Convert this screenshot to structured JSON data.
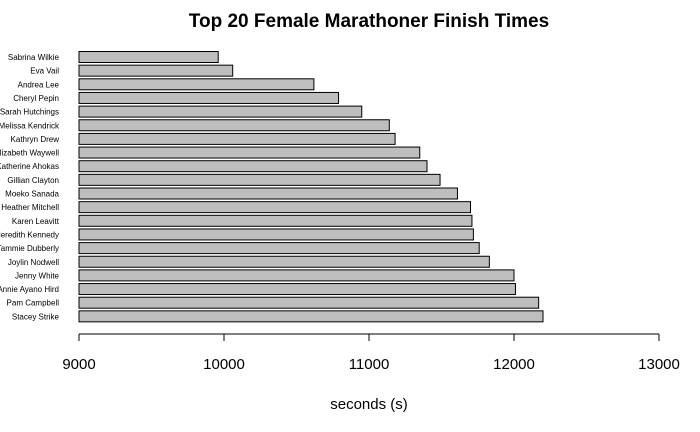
{
  "chart_data": {
    "type": "bar",
    "orientation": "horizontal",
    "title": "Top 20 Female Marathoner Finish Times",
    "xlabel": "seconds (s)",
    "ylabel": "",
    "xlim": [
      9000,
      13000
    ],
    "xticks": [
      "9000",
      "10000",
      "11000",
      "12000",
      "13000"
    ],
    "grid": false,
    "categories": [
      "Sabrina Wilkie",
      "Eva Vail",
      "Andrea Lee",
      "Cheryl Pepin",
      "Sarah Hutchings",
      "Melissa Kendrick",
      "Kathryn Drew",
      "Elizabeth Waywell",
      "Katherine Ahokas",
      "Gillian Clayton",
      "Moeko Sanada",
      "Heather Mitchell",
      "Karen Leavitt",
      "Meredith Kennedy",
      "Tammie Dubberly",
      "Joylin Nodwell",
      "Jenny White",
      "Annie Ayano Hird",
      "Pam Campbell",
      "Stacey Strike"
    ],
    "values": [
      9960,
      10060,
      10620,
      10790,
      10950,
      11140,
      11180,
      11350,
      11400,
      11490,
      11610,
      11700,
      11710,
      11720,
      11760,
      11830,
      12000,
      12010,
      12170,
      12200
    ],
    "colors": {
      "bar_fill": "#bebebe",
      "bar_stroke": "#000000",
      "axis": "#000000"
    }
  }
}
